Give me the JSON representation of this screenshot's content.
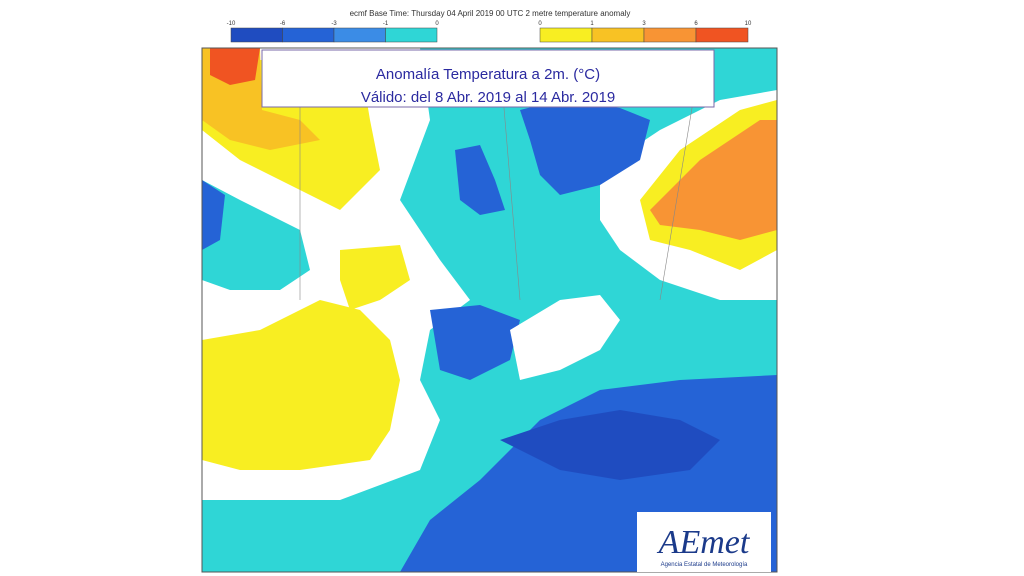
{
  "header": {
    "text": "ecmf  Base Time: Thursday 04 April 2019 00 UTC 2 metre temperature anomaly"
  },
  "legend": {
    "cold": {
      "labels": [
        "-10",
        "-6",
        "-3",
        "-1",
        "0"
      ],
      "colors": [
        "#1f4cc0",
        "#2563d6",
        "#3b8ce6",
        "#2fd6d6"
      ]
    },
    "warm": {
      "labels": [
        "0",
        "1",
        "3",
        "6",
        "10"
      ],
      "colors": [
        "#f8ee22",
        "#f8c224",
        "#f89434",
        "#f05422"
      ]
    }
  },
  "title_box": {
    "line1": "Anomalía Temperatura a 2m. (°C)",
    "line2": "Válido: del 8 Abr. 2019 al 14 Abr. 2019"
  },
  "logo": {
    "name": "AEmet",
    "subtitle": "Agencia Estatal de Meteorología"
  }
}
